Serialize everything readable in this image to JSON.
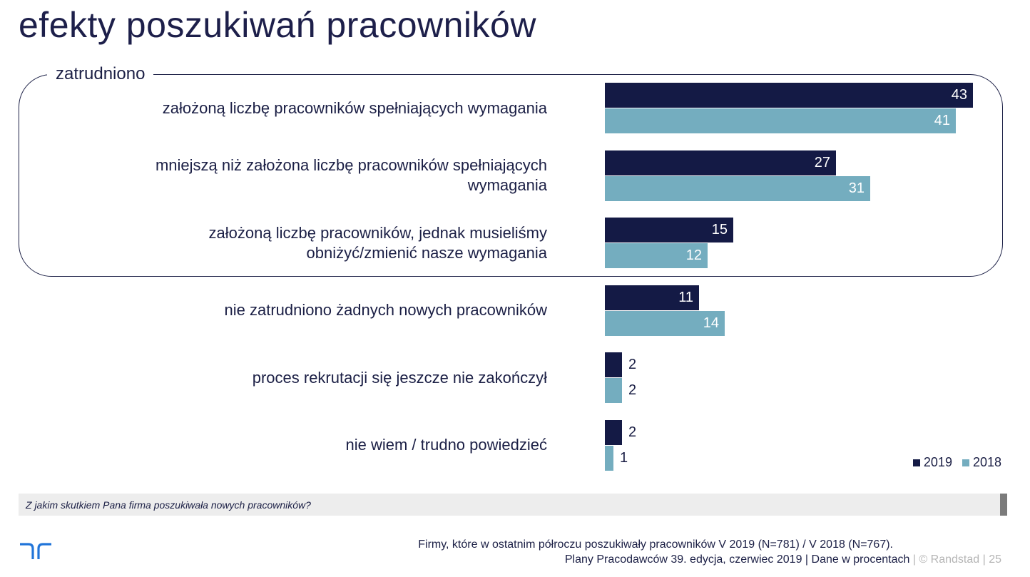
{
  "page": {
    "title": "efekty poszukiwań pracowników",
    "group_label": "zatrudniono",
    "question": "Z jakim skutkiem Pana firma poszukiwała nowych pracowników?",
    "footnote": "Firmy, które w ostatnim półroczu poszukiwały pracowników V 2019 (N=781) / V 2018 (N=767).",
    "source_main": "Plany Pracodawców 39. edycja, czerwiec 2019  | Dane w procentach",
    "source_sep1": " | ",
    "source_brand": "© Randstad",
    "source_sep2": " | ",
    "page_number": "25",
    "logo_icon": "randstad-logo-icon"
  },
  "colors": {
    "series_2019": "#141a45",
    "series_2018": "#74adbf",
    "text_dark": "#1b1f45"
  },
  "chart_data": {
    "type": "bar",
    "orientation": "horizontal",
    "categories": [
      "założoną liczbę pracowników spełniających wymagania",
      "mniejszą niż założona liczbę pracowników spełniających wymagania",
      "założoną liczbę pracowników, jednak musieliśmy obniżyć/zmienić nasze wymagania",
      "nie zatrudniono żadnych nowych pracowników",
      "proces rekrutacji się jeszcze nie zakończył",
      "nie wiem / trudno powiedzieć"
    ],
    "category_lines": [
      [
        "założoną liczbę pracowników spełniających wymagania"
      ],
      [
        "mniejszą niż założona liczbę pracowników spełniających",
        "wymagania"
      ],
      [
        "założoną liczbę pracowników, jednak musieliśmy",
        "obniżyć/zmienić nasze wymagania"
      ],
      [
        "nie zatrudniono żadnych nowych pracowników"
      ],
      [
        "proces rekrutacji się jeszcze nie zakończył"
      ],
      [
        "nie wiem / trudno powiedzieć"
      ]
    ],
    "series": [
      {
        "name": "2019",
        "values": [
          43,
          27,
          15,
          11,
          2,
          2
        ]
      },
      {
        "name": "2018",
        "values": [
          41,
          31,
          12,
          14,
          2,
          1
        ]
      }
    ],
    "xlim": [
      0,
      43
    ],
    "data_labels": true,
    "grid": false,
    "legend": "bottom-right",
    "title": "",
    "xlabel": "",
    "ylabel": ""
  }
}
